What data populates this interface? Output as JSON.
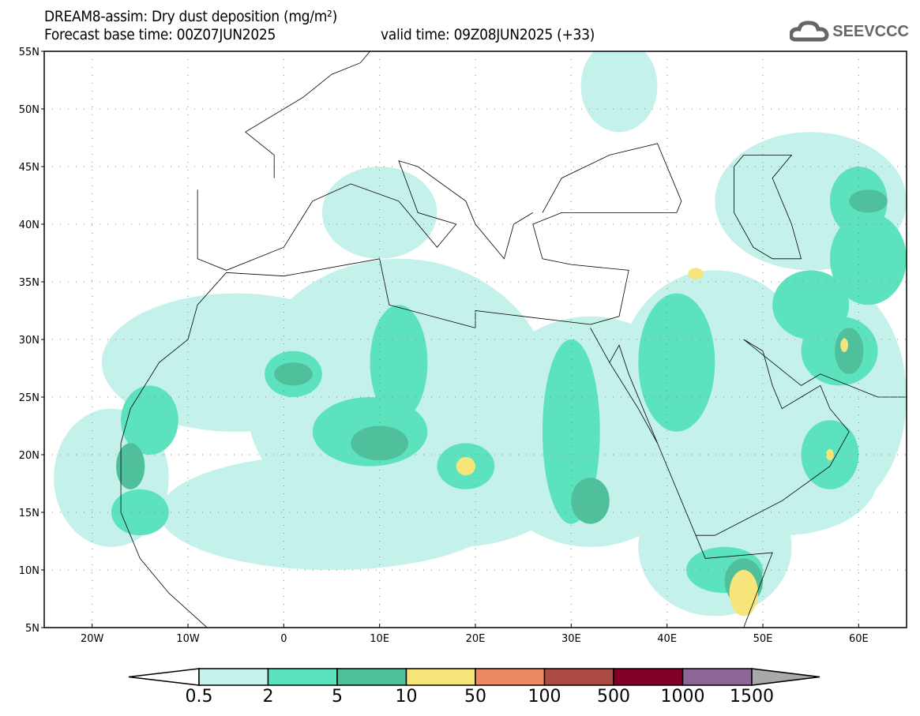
{
  "header": {
    "title": "DREAM8-assim: Dry dust deposition (mg/m²)",
    "base_time": "Forecast base time: 00Z07JUN2025",
    "valid_time": "valid time: 09Z08JUN2025 (+33)"
  },
  "logo": {
    "text": "SEEVCCC",
    "icon": "cloud-icon"
  },
  "map": {
    "lat_labels": [
      "55N",
      "50N",
      "45N",
      "40N",
      "35N",
      "30N",
      "25N",
      "20N",
      "15N",
      "10N",
      "5N"
    ],
    "lon_labels": [
      "20W",
      "10W",
      "0",
      "10E",
      "20E",
      "30E",
      "40E",
      "50E",
      "60E"
    ],
    "lat_range": [
      5,
      55
    ],
    "lon_range": [
      -25,
      65
    ]
  },
  "colorbar": {
    "labels": [
      "0.5",
      "2",
      "5",
      "10",
      "50",
      "100",
      "500",
      "1000",
      "1500"
    ],
    "colors": [
      "#c4f1ea",
      "#5ce3bd",
      "#50bf9b",
      "#f5e57a",
      "#ec8a66",
      "#ac4b43",
      "#800026",
      "#8c6795"
    ],
    "under_color": "#ffffff",
    "over_color": "#a9a9a9"
  }
}
